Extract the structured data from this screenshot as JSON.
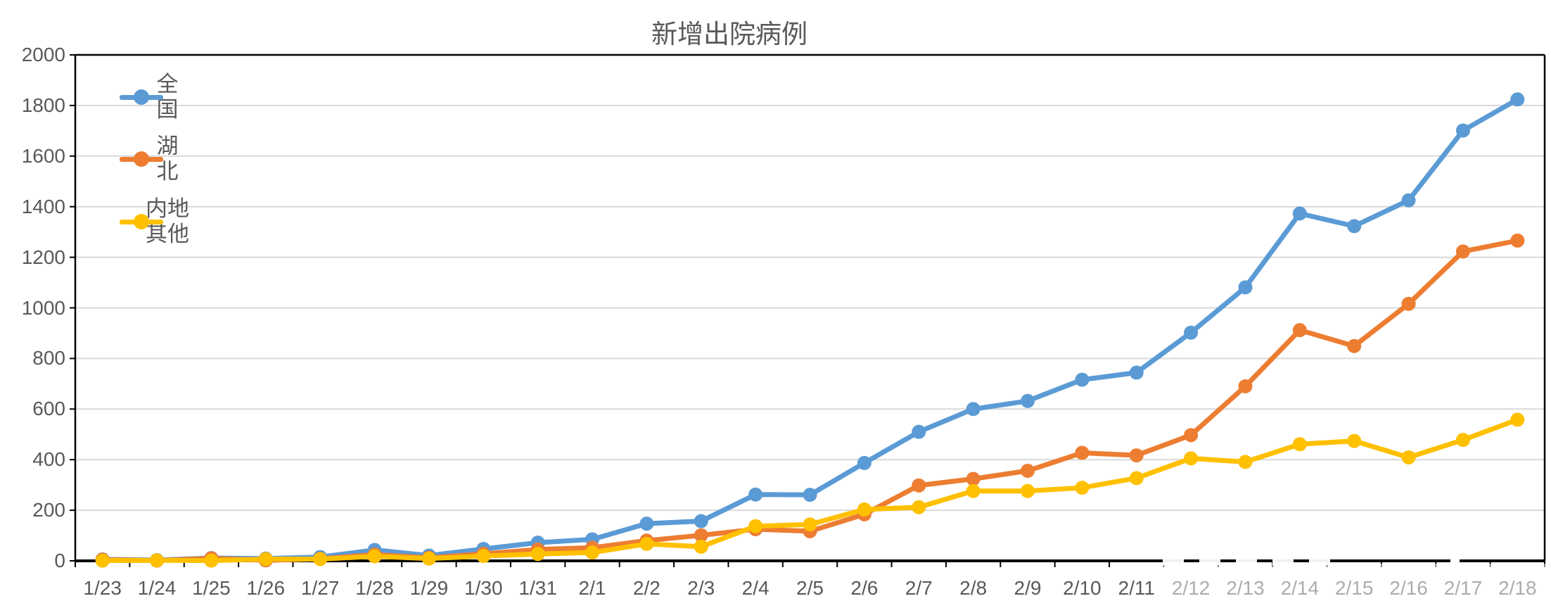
{
  "chart_data": {
    "type": "line",
    "title": "新增出院病例",
    "categories": [
      "1/23",
      "1/24",
      "1/25",
      "1/26",
      "1/27",
      "1/28",
      "1/29",
      "1/30",
      "1/31",
      "2/1",
      "2/2",
      "2/3",
      "2/4",
      "2/5",
      "2/6",
      "2/7",
      "2/8",
      "2/9",
      "2/10",
      "2/11",
      "2/12",
      "2/13",
      "2/14",
      "2/15",
      "2/16",
      "2/17",
      "2/18"
    ],
    "series": [
      {
        "name": "全国",
        "color": "#5B9BD5",
        "values": [
          6,
          3,
          11,
          9,
          15,
          43,
          21,
          47,
          72,
          85,
          147,
          157,
          262,
          261,
          387,
          510,
          600,
          632,
          716,
          744,
          902,
          1081,
          1373,
          1323,
          1425,
          1701,
          1824
        ]
      },
      {
        "name": "湖北",
        "color": "#ED7D31",
        "values": [
          5,
          1,
          10,
          2,
          8,
          25,
          12,
          28,
          45,
          52,
          80,
          101,
          125,
          117,
          184,
          298,
          324,
          356,
          427,
          417,
          497,
          690,
          912,
          849,
          1016,
          1223,
          1266
        ]
      },
      {
        "name": "内地其他",
        "color": "#FFC000",
        "values": [
          1,
          2,
          1,
          7,
          7,
          18,
          9,
          19,
          27,
          33,
          67,
          56,
          137,
          144,
          203,
          212,
          276,
          276,
          289,
          327,
          405,
          391,
          461,
          474,
          409,
          478,
          558
        ]
      }
    ],
    "xlabel": "",
    "ylabel": "",
    "ylim": [
      0,
      2000
    ],
    "y_tick_step": 200,
    "grid": "horizontal",
    "legend_position": "top-left",
    "gridline_color": "#D9D9D9",
    "axis_color": "#000000",
    "text_color": "#595959"
  }
}
